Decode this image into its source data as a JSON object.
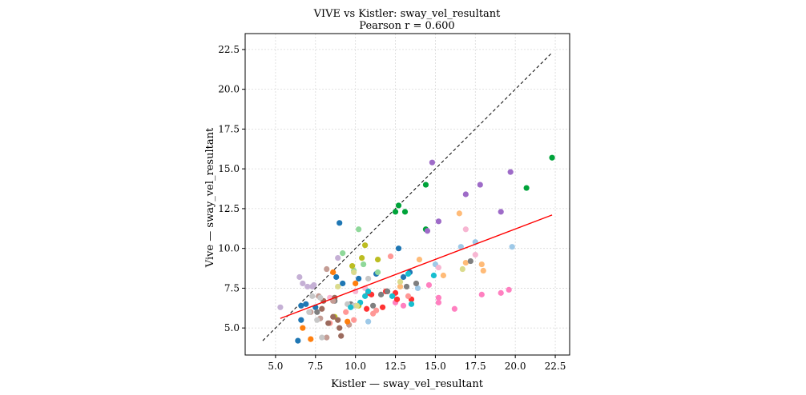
{
  "chart_data": {
    "type": "scatter",
    "title": "VIVE vs Kistler: sway_vel_resultant",
    "subtitle": "Pearson r = 0.600",
    "xlabel": "Kistler — sway_vel_resultant",
    "ylabel": "Vive — sway_vel_resultant",
    "xlim": [
      3.1,
      23.4
    ],
    "ylim": [
      3.3,
      23.5
    ],
    "xticks": [
      5.0,
      7.5,
      10.0,
      12.5,
      15.0,
      17.5,
      20.0,
      22.5
    ],
    "yticks": [
      5.0,
      7.5,
      10.0,
      12.5,
      15.0,
      17.5,
      20.0,
      22.5
    ],
    "tick_labels_x": [
      "5.0",
      "7.5",
      "10.0",
      "12.5",
      "15.0",
      "17.5",
      "20.0",
      "22.5"
    ],
    "tick_labels_y": [
      "5.0",
      "7.5",
      "10.0",
      "12.5",
      "15.0",
      "17.5",
      "20.0",
      "22.5"
    ],
    "grid": true,
    "identity_line": {
      "x": [
        4.2,
        22.3
      ],
      "y": [
        4.2,
        22.3
      ],
      "color": "#000000",
      "style": "dashed"
    },
    "fit_line": {
      "x": [
        5.3,
        22.3
      ],
      "y": [
        5.6,
        12.1
      ],
      "color": "#ff0000"
    },
    "series": [
      {
        "name": "green",
        "color": "#00a33a",
        "points": [
          [
            22.3,
            15.7
          ],
          [
            20.7,
            13.8
          ],
          [
            14.4,
            14.0
          ],
          [
            12.7,
            12.7
          ],
          [
            12.5,
            12.3
          ],
          [
            13.1,
            12.3
          ],
          [
            14.4,
            11.2
          ]
        ]
      },
      {
        "name": "purple",
        "color": "#9e6bc8",
        "points": [
          [
            14.8,
            15.4
          ],
          [
            19.7,
            14.8
          ],
          [
            17.8,
            14.0
          ],
          [
            16.9,
            13.4
          ],
          [
            19.1,
            12.3
          ],
          [
            15.2,
            11.7
          ],
          [
            14.5,
            11.1
          ]
        ]
      },
      {
        "name": "blue",
        "color": "#1f77b4",
        "points": [
          [
            9.0,
            11.6
          ],
          [
            12.7,
            10.0
          ],
          [
            9.2,
            7.8
          ],
          [
            8.8,
            8.2
          ],
          [
            10.2,
            8.1
          ],
          [
            6.9,
            6.5
          ],
          [
            6.6,
            6.4
          ],
          [
            6.6,
            5.5
          ],
          [
            6.4,
            4.2
          ],
          [
            7.5,
            6.3
          ],
          [
            13.0,
            8.2
          ],
          [
            13.4,
            8.5
          ],
          [
            11.3,
            8.4
          ]
        ]
      },
      {
        "name": "light-green",
        "color": "#8fd89a",
        "points": [
          [
            10.2,
            11.2
          ],
          [
            9.2,
            9.7
          ],
          [
            10.5,
            9.0
          ],
          [
            9.9,
            8.6
          ],
          [
            11.4,
            8.5
          ]
        ]
      },
      {
        "name": "olive",
        "color": "#bcbd22",
        "points": [
          [
            10.6,
            10.2
          ],
          [
            10.4,
            9.4
          ],
          [
            11.4,
            9.3
          ],
          [
            9.8,
            8.9
          ],
          [
            10.2,
            6.4
          ],
          [
            8.7,
            5.7
          ]
        ]
      },
      {
        "name": "lavender",
        "color": "#c5b0d5",
        "points": [
          [
            8.9,
            9.4
          ],
          [
            6.5,
            8.2
          ],
          [
            6.7,
            7.8
          ],
          [
            7.0,
            7.6
          ],
          [
            7.4,
            7.7
          ],
          [
            7.3,
            7.6
          ],
          [
            5.3,
            6.3
          ]
        ]
      },
      {
        "name": "light-blue",
        "color": "#9ec9e8",
        "points": [
          [
            16.6,
            10.1
          ],
          [
            17.5,
            10.4
          ],
          [
            19.8,
            10.1
          ],
          [
            15.0,
            9.0
          ],
          [
            13.9,
            7.5
          ],
          [
            10.8,
            5.4
          ]
        ]
      },
      {
        "name": "peach",
        "color": "#ffbb78",
        "points": [
          [
            16.5,
            12.2
          ],
          [
            14.0,
            9.3
          ],
          [
            16.9,
            9.1
          ],
          [
            17.9,
            9.0
          ],
          [
            18.0,
            8.6
          ],
          [
            15.5,
            8.3
          ],
          [
            12.8,
            7.6
          ]
        ]
      },
      {
        "name": "pink-light",
        "color": "#f7b6d2",
        "points": [
          [
            16.9,
            11.2
          ],
          [
            17.5,
            9.6
          ],
          [
            15.2,
            8.8
          ],
          [
            10.0,
            7.3
          ],
          [
            10.6,
            7.5
          ],
          [
            8.4,
            6.9
          ]
        ]
      },
      {
        "name": "pink",
        "color": "#ff80c0",
        "points": [
          [
            17.9,
            7.1
          ],
          [
            19.1,
            7.2
          ],
          [
            19.6,
            7.4
          ],
          [
            16.2,
            6.2
          ],
          [
            15.2,
            6.9
          ],
          [
            15.2,
            6.6
          ],
          [
            14.6,
            7.7
          ],
          [
            12.5,
            6.6
          ],
          [
            13.0,
            6.4
          ]
        ]
      },
      {
        "name": "red",
        "color": "#ff3333",
        "points": [
          [
            10.8,
            7.2
          ],
          [
            11.0,
            7.1
          ],
          [
            11.7,
            6.3
          ],
          [
            12.6,
            6.8
          ],
          [
            13.5,
            6.8
          ],
          [
            10.7,
            6.2
          ],
          [
            11.9,
            7.3
          ],
          [
            12.5,
            7.2
          ]
        ]
      },
      {
        "name": "salmon",
        "color": "#ff9896",
        "points": [
          [
            12.2,
            9.5
          ],
          [
            13.3,
            7.0
          ],
          [
            11.3,
            6.1
          ],
          [
            11.1,
            5.9
          ],
          [
            9.4,
            6.0
          ],
          [
            9.9,
            5.5
          ],
          [
            8.4,
            5.3
          ]
        ]
      },
      {
        "name": "gray",
        "color": "#7f7f7f",
        "points": [
          [
            17.2,
            9.2
          ],
          [
            13.8,
            7.8
          ],
          [
            13.2,
            7.6
          ],
          [
            12.0,
            7.3
          ],
          [
            11.6,
            7.1
          ],
          [
            11.1,
            6.4
          ],
          [
            9.7,
            6.5
          ],
          [
            8.7,
            6.7
          ],
          [
            7.6,
            6.0
          ]
        ]
      },
      {
        "name": "brown",
        "color": "#9c6b5e",
        "points": [
          [
            8.7,
            6.9
          ],
          [
            8.0,
            6.7
          ],
          [
            8.6,
            5.7
          ],
          [
            8.9,
            5.5
          ],
          [
            9.0,
            5.0
          ],
          [
            9.1,
            4.5
          ],
          [
            7.9,
            6.2
          ],
          [
            8.3,
            5.3
          ]
        ]
      },
      {
        "name": "tan",
        "color": "#c49c94",
        "points": [
          [
            8.2,
            8.7
          ],
          [
            8.6,
            6.7
          ],
          [
            7.7,
            7.0
          ],
          [
            7.2,
            6.0
          ],
          [
            7.8,
            5.6
          ],
          [
            9.6,
            5.2
          ],
          [
            8.2,
            4.4
          ]
        ]
      },
      {
        "name": "light-gray",
        "color": "#c7c7c7",
        "points": [
          [
            10.8,
            8.1
          ],
          [
            7.6,
            5.5
          ],
          [
            9.5,
            6.5
          ],
          [
            7.1,
            6.0
          ],
          [
            7.9,
            4.4
          ],
          [
            9.9,
            6.4
          ],
          [
            7.3,
            7.0
          ],
          [
            7.8,
            6.9
          ]
        ]
      },
      {
        "name": "cyan",
        "color": "#17becf",
        "points": [
          [
            14.9,
            8.3
          ],
          [
            13.3,
            8.4
          ],
          [
            12.3,
            7.0
          ],
          [
            10.8,
            7.3
          ],
          [
            10.6,
            7.0
          ],
          [
            10.3,
            6.6
          ],
          [
            9.7,
            6.3
          ],
          [
            13.5,
            6.5
          ]
        ]
      },
      {
        "name": "orange",
        "color": "#ff7f0e",
        "points": [
          [
            8.6,
            8.5
          ],
          [
            6.7,
            5.0
          ],
          [
            7.2,
            4.3
          ],
          [
            10.0,
            7.8
          ],
          [
            9.5,
            5.4
          ]
        ]
      },
      {
        "name": "khaki",
        "color": "#dbdb8d",
        "points": [
          [
            16.7,
            8.7
          ],
          [
            12.8,
            7.9
          ],
          [
            10.1,
            6.4
          ],
          [
            9.9,
            8.5
          ],
          [
            8.9,
            7.6
          ]
        ]
      }
    ]
  }
}
